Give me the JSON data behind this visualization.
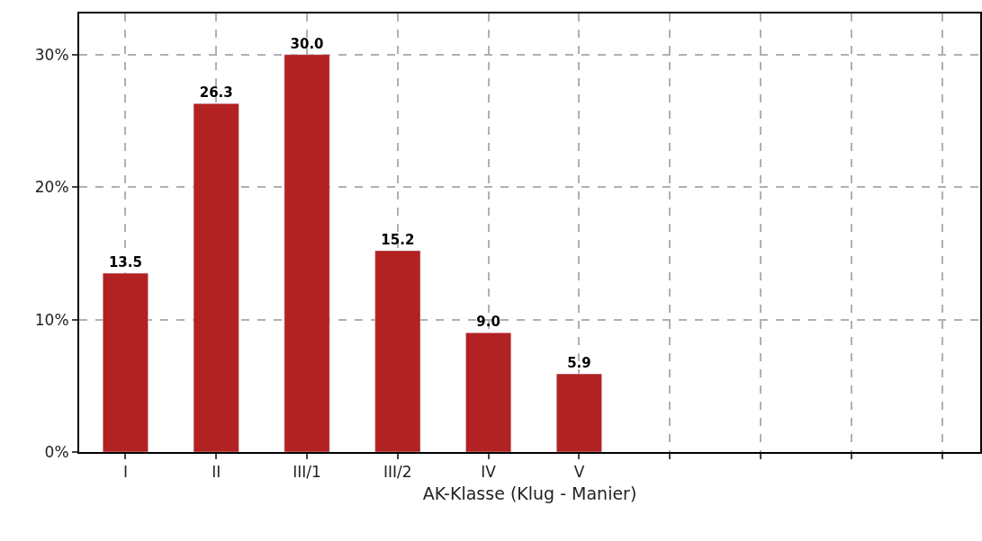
{
  "chart_data": {
    "type": "bar",
    "xlabel": "AK-Klasse (Klug - Manier)",
    "categories": [
      "I",
      "II",
      "III/1",
      "III/2",
      "IV",
      "V",
      null,
      null,
      null,
      null
    ],
    "values": [
      13.5,
      26.3,
      30.0,
      15.2,
      9.0,
      5.9,
      null,
      null,
      null,
      null
    ],
    "color": "#b22222",
    "ylim": [
      0,
      33.1
    ],
    "yticks": [
      {
        "value": 0,
        "label": "0%"
      },
      {
        "value": 10,
        "label": "10%"
      },
      {
        "value": 20,
        "label": "20%"
      },
      {
        "value": 30,
        "label": "30%"
      }
    ],
    "value_labels": [
      "13.5",
      "26.3",
      "30.0",
      "15.2",
      "9.0",
      "5.9",
      null,
      null,
      null,
      null
    ],
    "grid": true
  }
}
